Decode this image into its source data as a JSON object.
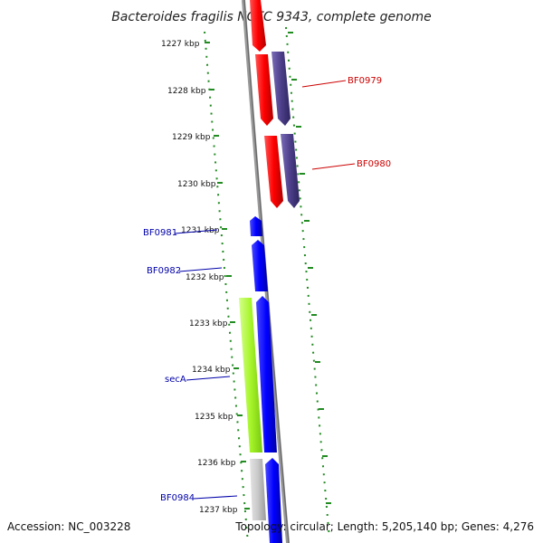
{
  "header": {
    "title": "Bacteroides fragilis NCTC 9343, complete genome"
  },
  "axis": {
    "ticks": [
      "1227 kbp",
      "1228 kbp",
      "1229 kbp",
      "1230 kbp",
      "1231 kbp",
      "1232 kbp",
      "1233 kbp",
      "1234 kbp",
      "1235 kbp",
      "1236 kbp",
      "1237 kbp"
    ]
  },
  "genes": {
    "bf0979": "BF0979",
    "bf0980": "BF0980",
    "bf0981": "BF0981",
    "bf0982": "BF0982",
    "seca": "secA",
    "bf0984": "BF0984"
  },
  "footer": {
    "accession": "Accession: NC_003228",
    "topology": "Topology: circular; Length: 5,205,140 bp; Genes: 4,276"
  },
  "colors": {
    "forward_red": "#ff0000",
    "forward_purple": "#4d3f8a",
    "reverse_blue": "#0000ff",
    "secA_green": "#a6f52a",
    "gray_feature": "#c8c8c8",
    "dotted_green": "#228b22",
    "backbone": "#808080"
  }
}
